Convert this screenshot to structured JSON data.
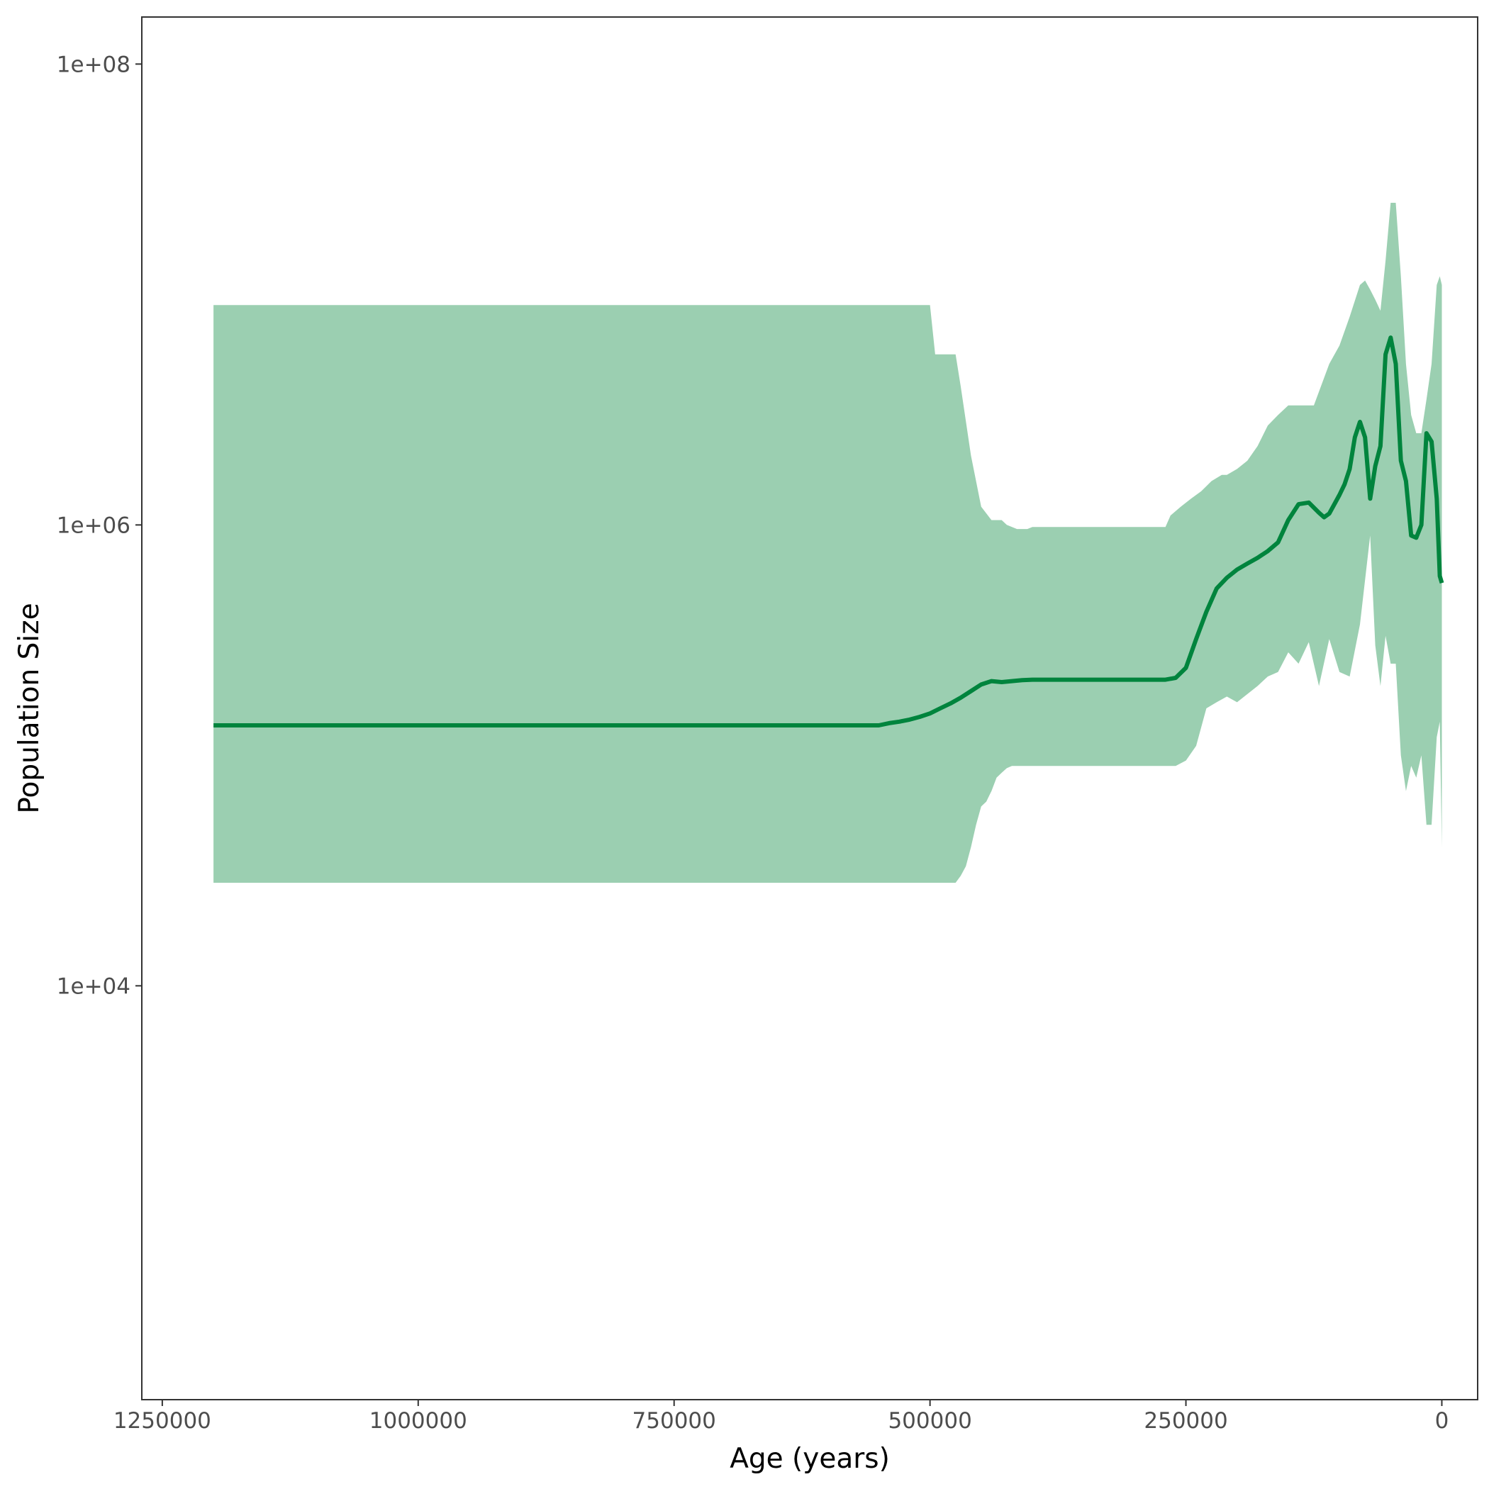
{
  "chart_data": {
    "type": "area",
    "title": "",
    "xlabel": "Age (years)",
    "ylabel": "Population Size",
    "x_reversed": true,
    "y_scale": "log10",
    "xlim": [
      1270000,
      -35000
    ],
    "ylim": [
      160,
      160000000
    ],
    "x_ticks": [
      {
        "value": 1250000,
        "label": "1250000"
      },
      {
        "value": 1000000,
        "label": "1000000"
      },
      {
        "value": 750000,
        "label": "750000"
      },
      {
        "value": 500000,
        "label": "500000"
      },
      {
        "value": 250000,
        "label": "250000"
      },
      {
        "value": 0,
        "label": "0"
      }
    ],
    "y_ticks": [
      {
        "value": 100000000,
        "label": "1e+08"
      },
      {
        "value": 1000000,
        "label": "1e+06"
      },
      {
        "value": 10000,
        "label": "1e+04"
      }
    ],
    "grid": false,
    "colors": {
      "line": "#00843d",
      "band": "#9bcfb1",
      "axis": "#333333"
    },
    "series": [
      {
        "role": "median",
        "x": [
          1200000,
          550000,
          540000,
          530000,
          520000,
          510000,
          500000,
          490000,
          480000,
          470000,
          460000,
          450000,
          440000,
          430000,
          420000,
          410000,
          400000,
          300000,
          270000,
          260000,
          250000,
          240000,
          230000,
          220000,
          210000,
          200000,
          190000,
          180000,
          170000,
          160000,
          150000,
          140000,
          130000,
          120000,
          115000,
          110000,
          100000,
          95000,
          90000,
          85000,
          80000,
          75000,
          70000,
          65000,
          60000,
          55000,
          50000,
          45000,
          40000,
          35000,
          30000,
          25000,
          20000,
          15000,
          10000,
          5000,
          2000,
          0
        ],
        "y": [
          135000,
          135000,
          138000,
          140000,
          143000,
          147000,
          152000,
          160000,
          168000,
          178000,
          190000,
          203000,
          210000,
          208000,
          210000,
          212000,
          213000,
          213000,
          213000,
          217000,
          240000,
          320000,
          420000,
          530000,
          590000,
          640000,
          680000,
          720000,
          770000,
          840000,
          1050000,
          1230000,
          1250000,
          1130000,
          1080000,
          1120000,
          1350000,
          1500000,
          1750000,
          2400000,
          2800000,
          2400000,
          1300000,
          1800000,
          2200000,
          5500000,
          6500000,
          5000000,
          1900000,
          1550000,
          900000,
          880000,
          1000000,
          2500000,
          2300000,
          1300000,
          600000,
          560000
        ]
      },
      {
        "role": "upper",
        "x": [
          1200000,
          500000,
          495000,
          475000,
          470000,
          460000,
          450000,
          440000,
          430000,
          425000,
          415000,
          405000,
          400000,
          375000,
          300000,
          270000,
          265000,
          255000,
          245000,
          235000,
          225000,
          215000,
          210000,
          200000,
          190000,
          180000,
          170000,
          160000,
          150000,
          140000,
          125000,
          110000,
          100000,
          90000,
          80000,
          75000,
          70000,
          65000,
          60000,
          55000,
          50000,
          45000,
          40000,
          35000,
          30000,
          25000,
          20000,
          15000,
          10000,
          5000,
          2000,
          0
        ],
        "y": [
          9000000,
          9000000,
          5500000,
          5500000,
          4000000,
          2000000,
          1200000,
          1050000,
          1050000,
          1000000,
          960000,
          960000,
          980000,
          980000,
          980000,
          980000,
          1100000,
          1200000,
          1300000,
          1400000,
          1550000,
          1650000,
          1650000,
          1750000,
          1900000,
          2200000,
          2700000,
          3000000,
          3300000,
          3300000,
          3300000,
          5000000,
          6000000,
          8000000,
          11000000,
          11500000,
          10500000,
          9500000,
          8500000,
          14000000,
          25000000,
          25000000,
          12000000,
          5000000,
          3000000,
          2500000,
          2500000,
          3500000,
          5000000,
          11000000,
          12000000,
          11000000
        ]
      },
      {
        "role": "lower",
        "x": [
          1200000,
          490000,
          475000,
          470000,
          465000,
          460000,
          455000,
          450000,
          445000,
          440000,
          435000,
          430000,
          425000,
          420000,
          400000,
          300000,
          260000,
          250000,
          240000,
          230000,
          220000,
          210000,
          200000,
          180000,
          170000,
          160000,
          150000,
          140000,
          130000,
          120000,
          110000,
          100000,
          90000,
          80000,
          70000,
          65000,
          60000,
          55000,
          50000,
          45000,
          40000,
          35000,
          30000,
          25000,
          20000,
          15000,
          10000,
          5000,
          2000,
          0
        ],
        "y": [
          28000,
          28000,
          28000,
          30000,
          33000,
          40000,
          50000,
          60000,
          63000,
          70000,
          80000,
          84000,
          88000,
          90000,
          90000,
          90000,
          90000,
          95000,
          110000,
          160000,
          170000,
          180000,
          170000,
          200000,
          220000,
          230000,
          280000,
          250000,
          310000,
          200000,
          320000,
          230000,
          220000,
          370000,
          900000,
          300000,
          200000,
          330000,
          250000,
          250000,
          100000,
          70000,
          90000,
          80000,
          100000,
          50000,
          50000,
          120000,
          140000,
          40000
        ]
      }
    ]
  }
}
